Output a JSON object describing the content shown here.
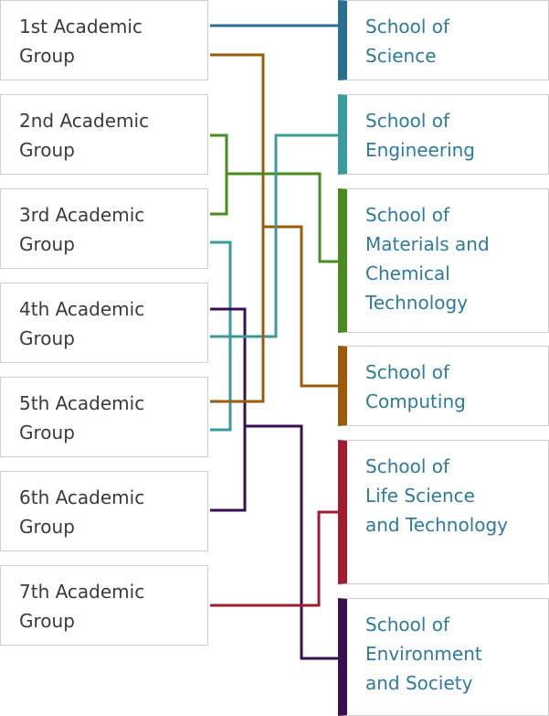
{
  "groups": [
    {
      "id": "g1",
      "label": "1st Academic\nGroup"
    },
    {
      "id": "g2",
      "label": "2nd Academic\nGroup"
    },
    {
      "id": "g3",
      "label": "3rd Academic\nGroup"
    },
    {
      "id": "g4",
      "label": "4th Academic\nGroup"
    },
    {
      "id": "g5",
      "label": "5th Academic\nGroup"
    },
    {
      "id": "g6",
      "label": "6th Academic\nGroup"
    },
    {
      "id": "g7",
      "label": "7th Academic\nGroup"
    }
  ],
  "schools": [
    {
      "id": "science",
      "label": "School of\nScience",
      "color": "#2a6e91"
    },
    {
      "id": "engineering",
      "label": "School of\nEngineering",
      "color": "#3a9a9e"
    },
    {
      "id": "materials",
      "label": "School of\nMaterials and\nChemical\nTechnology",
      "color": "#4a8a1e"
    },
    {
      "id": "computing",
      "label": "School of\nComputing",
      "color": "#9a5c0a"
    },
    {
      "id": "lifescience",
      "label": "School of\nLife Science\nand Technology",
      "color": "#a01c2e"
    },
    {
      "id": "environment",
      "label": "School of\nEnvironment\nand Society",
      "color": "#3a0f52"
    }
  ],
  "links": [
    {
      "from": "g1",
      "to": "science"
    },
    {
      "from": "g1",
      "to": "computing"
    },
    {
      "from": "g2",
      "to": "materials"
    },
    {
      "from": "g3",
      "to": "materials"
    },
    {
      "from": "g3",
      "to": "engineering"
    },
    {
      "from": "g4",
      "to": "environment"
    },
    {
      "from": "g4",
      "to": "engineering"
    },
    {
      "from": "g5",
      "to": "computing"
    },
    {
      "from": "g5",
      "to": "engineering"
    },
    {
      "from": "g6",
      "to": "environment"
    },
    {
      "from": "g7",
      "to": "lifescience"
    }
  ]
}
